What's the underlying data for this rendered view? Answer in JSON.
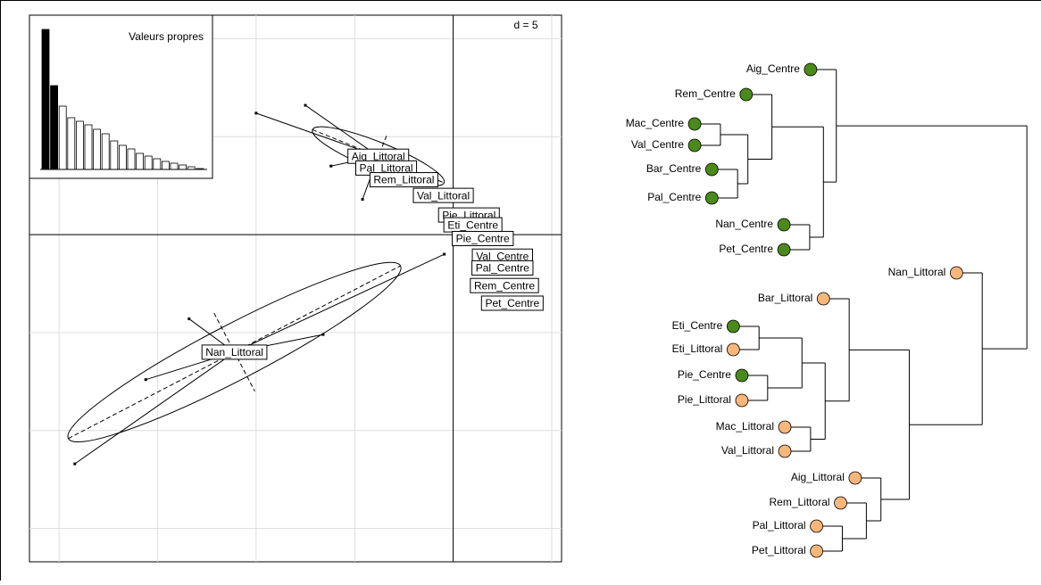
{
  "chart_data": [
    {
      "type": "scatter",
      "scale_label": "d = 5",
      "xlim": [
        -21.5,
        5.5
      ],
      "ylim": [
        -16.7,
        11.2
      ],
      "xticks": [
        -20,
        -15,
        -10,
        -5,
        0,
        5
      ],
      "yticks": [
        -15,
        -10,
        -5,
        0,
        5,
        10
      ],
      "points": [
        {
          "label": "Nan_Littoral",
          "x": -11.1,
          "y": -6.0,
          "star": [
            [
              -19.2,
              -11.7
            ],
            [
              -0.45,
              -1.0
            ],
            [
              -13.4,
              -4.3
            ],
            [
              -6.6,
              -5.1
            ],
            [
              -15.6,
              -7.4
            ]
          ],
          "ellipse": {
            "rx": 9.5,
            "ry": 1.4,
            "angle": 27.5
          }
        },
        {
          "label": "Aig_Littoral",
          "x": -3.8,
          "y": 4.0,
          "star": [
            [
              -10.0,
              6.2
            ],
            [
              -7.5,
              6.6
            ],
            [
              -6.2,
              3.5
            ],
            [
              -4.6,
              1.8
            ]
          ],
          "ellipse": {
            "rx": 3.6,
            "ry": 0.7,
            "angle": -22
          }
        },
        {
          "label": "Pal_Littoral",
          "x": -3.4,
          "y": 3.4
        },
        {
          "label": "Rem_Littoral",
          "x": -2.5,
          "y": 2.8
        },
        {
          "label": "Val_Littoral",
          "x": -0.5,
          "y": 2.0
        },
        {
          "label": "Pie_Littoral",
          "x": 0.8,
          "y": 1.0
        },
        {
          "label": "Eti_Centre",
          "x": 1.0,
          "y": 0.5
        },
        {
          "label": "Pie_Centre",
          "x": 1.5,
          "y": -0.2
        },
        {
          "label": "Val_Centre",
          "x": 2.5,
          "y": -1.1
        },
        {
          "label": "Pal_Centre",
          "x": 2.5,
          "y": -1.7
        },
        {
          "label": "Rem_Centre",
          "x": 2.6,
          "y": -2.6
        },
        {
          "label": "Pet_Centre",
          "x": 3.0,
          "y": -3.5
        }
      ]
    },
    {
      "type": "bar",
      "title": "Valeurs propres",
      "values": [
        157,
        94,
        71,
        58,
        54,
        50,
        45,
        40,
        32,
        27,
        23,
        18,
        15,
        12,
        9,
        7,
        5,
        3,
        1
      ],
      "colors": [
        "#000",
        "#000",
        "#fff",
        "#fff",
        "#fff",
        "#fff",
        "#fff",
        "#fff",
        "#fff",
        "#fff",
        "#fff",
        "#fff",
        "#fff",
        "#fff",
        "#fff",
        "#fff",
        "#fff",
        "#fff",
        "#fff"
      ],
      "ylim": [
        0,
        160
      ]
    },
    {
      "type": "dendrogram",
      "hang": 3,
      "xlim": [
        -1,
        38
      ],
      "tree": {
        "height": 37.5,
        "children": [
          {
            "height": 15.3,
            "children": [
              {
                "label": "Aig_Centre",
                "color": "#4a8a1a"
              },
              {
                "height": 13.8,
                "children": [
                  {
                    "height": 7.8,
                    "children": [
                      {
                        "label": "Rem_Centre",
                        "color": "#4a8a1a"
                      },
                      {
                        "height": 5.0,
                        "children": [
                          {
                            "height": 1.8,
                            "children": [
                              {
                                "label": "Mac_Centre",
                                "color": "#4a8a1a"
                              },
                              {
                                "label": "Val_Centre",
                                "color": "#4a8a1a"
                              }
                            ]
                          },
                          {
                            "height": 3.8,
                            "children": [
                              {
                                "label": "Bar_Centre",
                                "color": "#4a8a1a"
                              },
                              {
                                "label": "Pal_Centre",
                                "color": "#4a8a1a"
                              }
                            ]
                          }
                        ]
                      }
                    ]
                  },
                  {
                    "height": 12.2,
                    "children": [
                      {
                        "label": "Nan_Centre",
                        "color": "#4a8a1a"
                      },
                      {
                        "label": "Pet_Centre",
                        "color": "#4a8a1a"
                      }
                    ]
                  }
                ]
              }
            ]
          },
          {
            "height": 32.3,
            "children": [
              {
                "label": "Nan_Littoral",
                "color": "#f7b67a"
              },
              {
                "height": 23.8,
                "children": [
                  {
                    "height": 16.8,
                    "children": [
                      {
                        "label": "Bar_Littoral",
                        "color": "#f7b67a"
                      },
                      {
                        "height": 14.0,
                        "children": [
                          {
                            "height": 11.3,
                            "children": [
                              {
                                "height": 6.3,
                                "children": [
                                  {
                                    "label": "Eti_Centre",
                                    "color": "#4a8a1a"
                                  },
                                  {
                                    "label": "Eti_Littoral",
                                    "color": "#f7b67a"
                                  }
                                ]
                              },
                              {
                                "height": 7.3,
                                "children": [
                                  {
                                    "label": "Pie_Centre",
                                    "color": "#4a8a1a"
                                  },
                                  {
                                    "label": "Pie_Littoral",
                                    "color": "#f7b67a"
                                  }
                                ]
                              }
                            ]
                          },
                          {
                            "height": 12.3,
                            "children": [
                              {
                                "label": "Mac_Littoral",
                                "color": "#f7b67a"
                              },
                              {
                                "label": "Val_Littoral",
                                "color": "#f7b67a"
                              }
                            ]
                          }
                        ]
                      }
                    ]
                  },
                  {
                    "height": 20.5,
                    "children": [
                      {
                        "label": "Aig_Littoral",
                        "color": "#f7b67a"
                      },
                      {
                        "height": 18.8,
                        "children": [
                          {
                            "label": "Rem_Littoral",
                            "color": "#f7b67a"
                          },
                          {
                            "height": 16.0,
                            "children": [
                              {
                                "label": "Pal_Littoral",
                                "color": "#f7b67a"
                              },
                              {
                                "label": "Pet_Littoral",
                                "color": "#f7b67a"
                              }
                            ]
                          }
                        ]
                      }
                    ]
                  }
                ]
              }
            ]
          }
        ]
      }
    }
  ]
}
